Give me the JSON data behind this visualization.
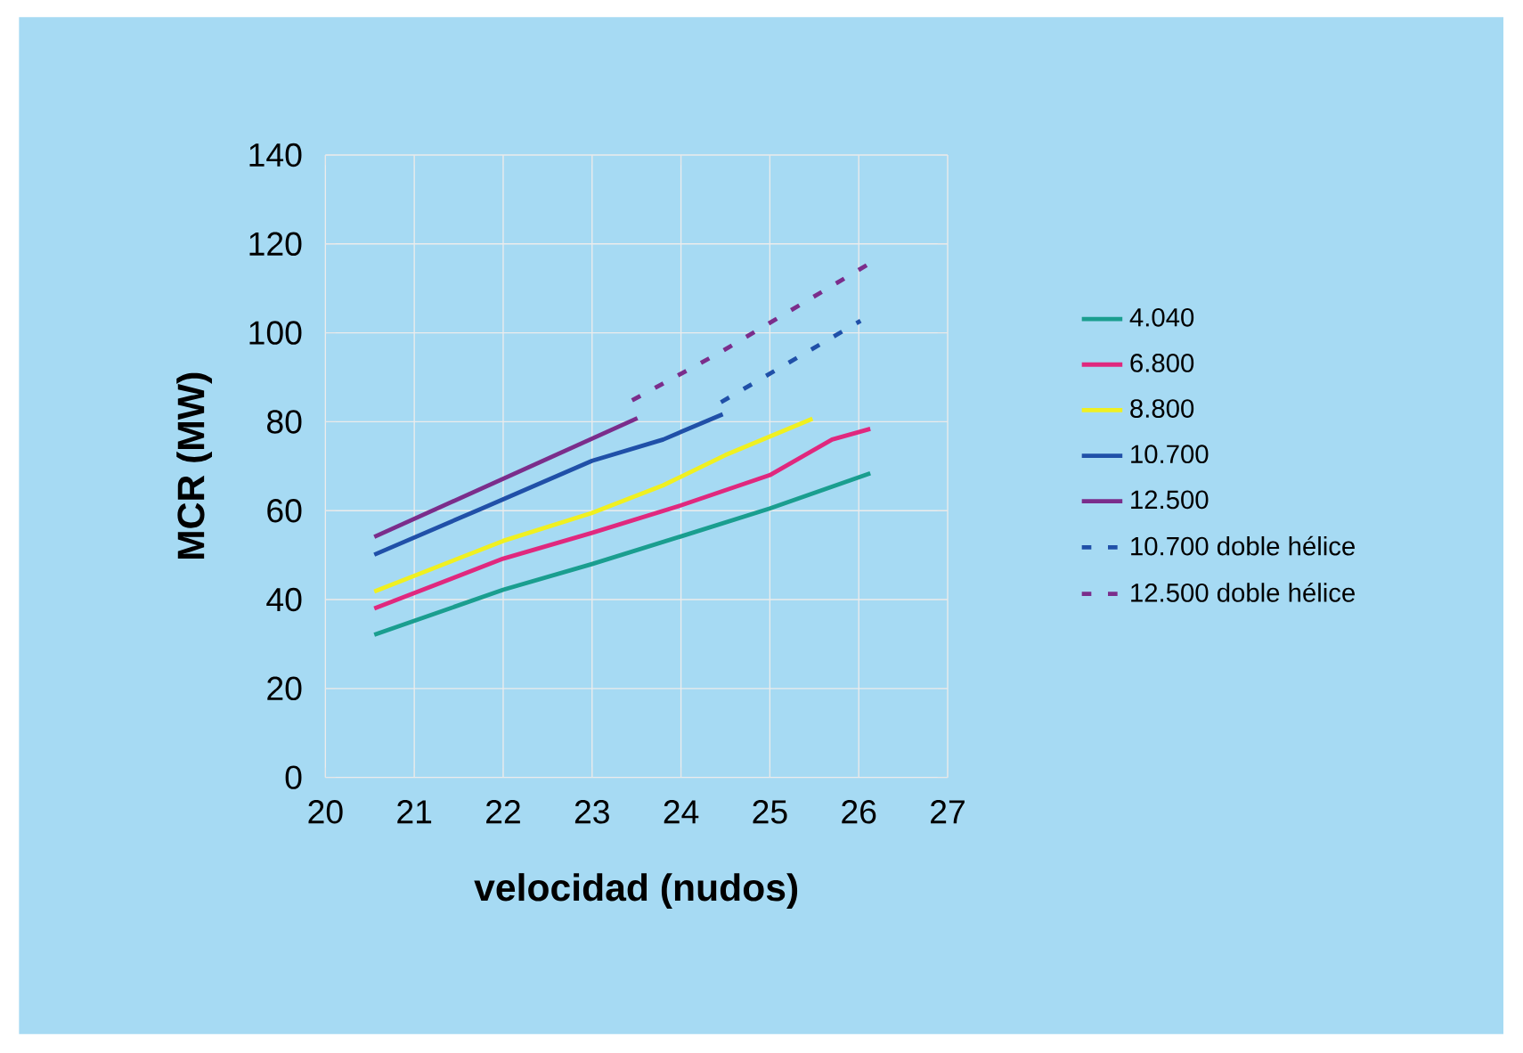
{
  "chart_data": {
    "type": "line",
    "xlabel": "velocidad (nudos)",
    "ylabel": "MCR (MW)",
    "xlim": [
      20,
      27
    ],
    "xticks": [
      20,
      21,
      22,
      23,
      24,
      25,
      26,
      27
    ],
    "ylim": [
      0,
      140
    ],
    "yticks": [
      0,
      20,
      40,
      60,
      80,
      100,
      120,
      140
    ],
    "grid": true,
    "legend": "right",
    "marker": "none",
    "series": [
      {
        "name": "4.040",
        "color": "#1a9e8f",
        "line_style": "solid",
        "x": [
          20.55,
          22.0,
          23.0,
          24.0,
          25.0,
          26.13
        ],
        "values": [
          32.1,
          42.2,
          48.0,
          54.2,
          60.5,
          68.4
        ]
      },
      {
        "name": "6.800",
        "color": "#e0287e",
        "line_style": "solid",
        "x": [
          20.55,
          22.0,
          23.0,
          24.0,
          25.0,
          25.7,
          26.13
        ],
        "values": [
          38.0,
          49.2,
          55.0,
          61.2,
          68.0,
          76.0,
          78.4
        ]
      },
      {
        "name": "8.800",
        "color": "#f0f020",
        "line_style": "solid",
        "x": [
          20.55,
          22.0,
          23.0,
          23.8,
          24.5,
          25.48
        ],
        "values": [
          41.8,
          53.2,
          59.5,
          65.7,
          72.5,
          80.7
        ]
      },
      {
        "name": "10.700",
        "color": "#2050a8",
        "line_style": "solid",
        "x": [
          20.55,
          21.75,
          23.0,
          23.8,
          24.47
        ],
        "values": [
          50.1,
          60.4,
          71.2,
          76.0,
          81.7
        ]
      },
      {
        "name": "12.500",
        "color": "#7b2d8b",
        "line_style": "solid",
        "x": [
          20.55,
          23.51
        ],
        "values": [
          54.1,
          80.8
        ]
      },
      {
        "name": "10.700 doble hélice",
        "color": "#2050a8",
        "line_style": "dashed",
        "x": [
          24.45,
          26.02
        ],
        "values": [
          84.4,
          102.7
        ]
      },
      {
        "name": "12.500 doble hélice",
        "color": "#7b2d8b",
        "line_style": "dashed",
        "x": [
          23.45,
          24.45,
          26.13
        ],
        "values": [
          84.8,
          95.7,
          115.7
        ]
      }
    ]
  }
}
